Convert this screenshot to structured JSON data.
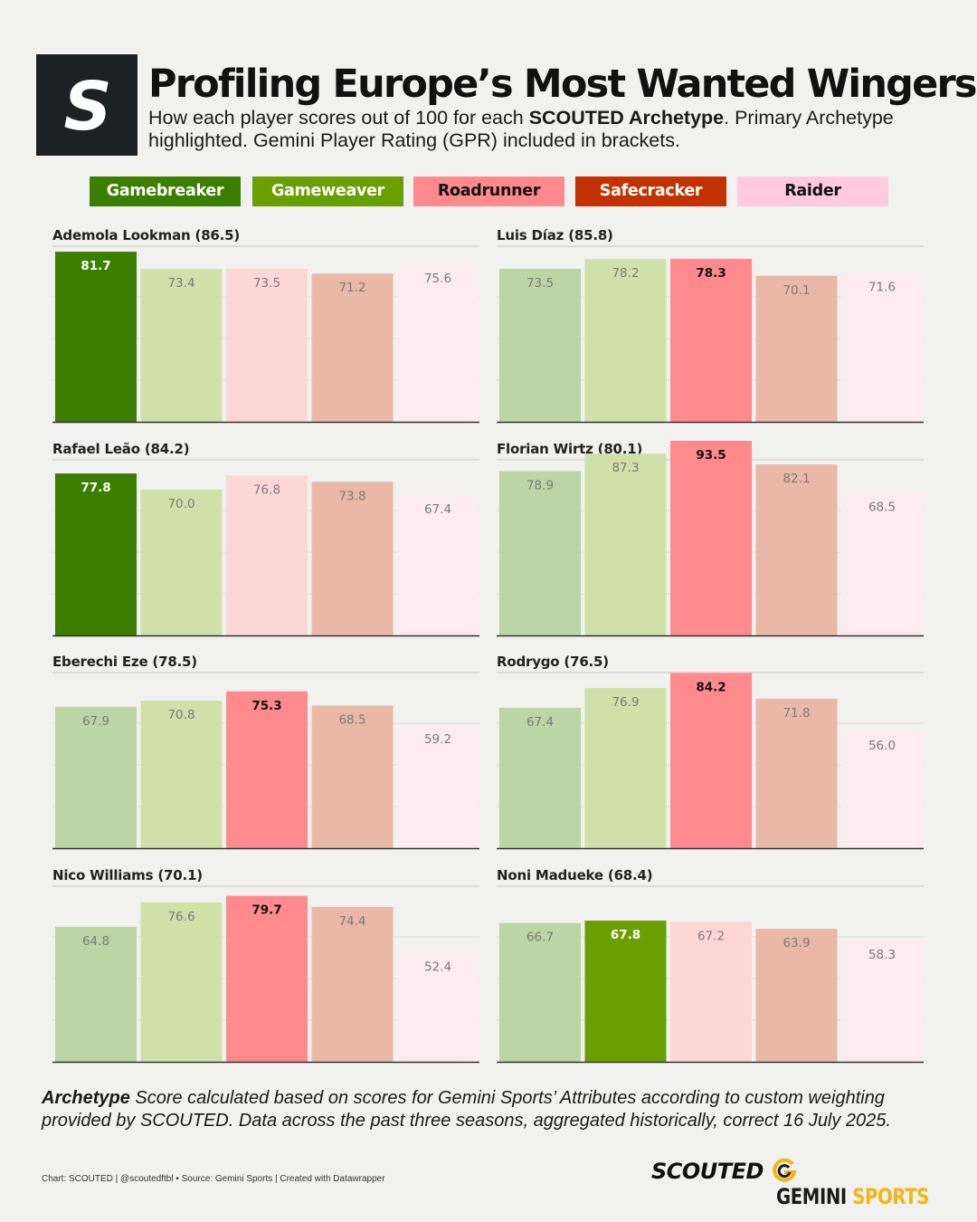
{
  "header": {
    "title": "Profiling Europe’s Most Wanted Wingers",
    "subtitle_part1": "How each player scores out of 100 for each ",
    "subtitle_bold": "SCOUTED Archetype",
    "subtitle_part2": ". Primary Archetype highlighted. Gemini Player Rating (GPR) included in brackets."
  },
  "colors": {
    "primary": [
      "#3b7e00",
      "#6a9f02",
      "#fe8a8e",
      "#c43100",
      "#ffcade"
    ],
    "muted": [
      "#bcd5a5",
      "#cfe0a8",
      "#fdd6d6",
      "#eab8a7",
      "#fdebf1"
    ],
    "background": "#f1f1ef"
  },
  "legend": [
    {
      "label": "Gamebreaker",
      "bg": "#3b7e00",
      "fg": "#ffffff"
    },
    {
      "label": "Gameweaver",
      "bg": "#6a9f02",
      "fg": "#ffffff"
    },
    {
      "label": "Roadrunner",
      "bg": "#fe8a8e",
      "fg": "#111111"
    },
    {
      "label": "Safecracker",
      "bg": "#c43100",
      "fg": "#ffffff"
    },
    {
      "label": "Raider",
      "bg": "#ffcade",
      "fg": "#111111"
    }
  ],
  "chart_data": {
    "type": "bar",
    "categories": [
      "Gamebreaker",
      "Gameweaver",
      "Roadrunner",
      "Safecracker",
      "Raider"
    ],
    "panels": [
      {
        "title": "Ademola Lookman (86.5)",
        "values": [
          81.7,
          73.4,
          73.5,
          71.2,
          75.6
        ],
        "labels": [
          "81.7",
          "73.4",
          "73.5",
          "71.2",
          "75.6"
        ],
        "primary": 0
      },
      {
        "title": "Luis Díaz (85.8)",
        "values": [
          73.5,
          78.2,
          78.3,
          70.1,
          71.6
        ],
        "labels": [
          "73.5",
          "78.2",
          "78.3",
          "70.1",
          "71.6"
        ],
        "primary": 2
      },
      {
        "title": "Rafael Leão (84.2)",
        "values": [
          77.8,
          70.0,
          76.8,
          73.8,
          67.4
        ],
        "labels": [
          "77.8",
          "70.0",
          "76.8",
          "73.8",
          "67.4"
        ],
        "primary": 0
      },
      {
        "title": "Florian Wirtz (80.1)",
        "values": [
          78.9,
          87.3,
          93.5,
          82.1,
          68.5
        ],
        "labels": [
          "78.9",
          "87.3",
          "93.5",
          "82.1",
          "68.5"
        ],
        "primary": 2
      },
      {
        "title": "Eberechi Eze (78.5)",
        "values": [
          67.9,
          70.8,
          75.3,
          68.5,
          59.2
        ],
        "labels": [
          "67.9",
          "70.8",
          "75.3",
          "68.5",
          "59.2"
        ],
        "primary": 2
      },
      {
        "title": "Rodrygo (76.5)",
        "values": [
          67.4,
          76.9,
          84.2,
          71.8,
          56.0
        ],
        "labels": [
          "67.4",
          "76.9",
          "84.2",
          "71.8",
          "56.0"
        ],
        "primary": 2
      },
      {
        "title": "Nico Williams (70.1)",
        "values": [
          64.8,
          76.6,
          79.7,
          74.4,
          52.4
        ],
        "labels": [
          "64.8",
          "76.6",
          "79.7",
          "74.4",
          "52.4"
        ],
        "primary": 2
      },
      {
        "title": "Noni Madueke (68.4)",
        "values": [
          66.7,
          67.8,
          67.2,
          63.9,
          58.3
        ],
        "labels": [
          "66.7",
          "67.8",
          "67.2",
          "63.9",
          "58.3"
        ],
        "primary": 1
      }
    ],
    "ylim": [
      0,
      100
    ],
    "grid": true,
    "legend": "top"
  },
  "footnote": {
    "bold": "Archetype",
    "text": " Score calculated based on scores for Gemini Sports’ Attributes according to custom weighting provided by SCOUTED. Data across the past three seasons, aggregated historically, correct 16 July 2025."
  },
  "credits": "Chart: SCOUTED | @scoutedftbl • Source: Gemini Sports | Created with Datawrapper",
  "brands": {
    "scouted": "SCOUTED",
    "gemini_word1": "GEMINI",
    "gemini_word2": "SPORTS",
    "logo_letter": "S"
  }
}
